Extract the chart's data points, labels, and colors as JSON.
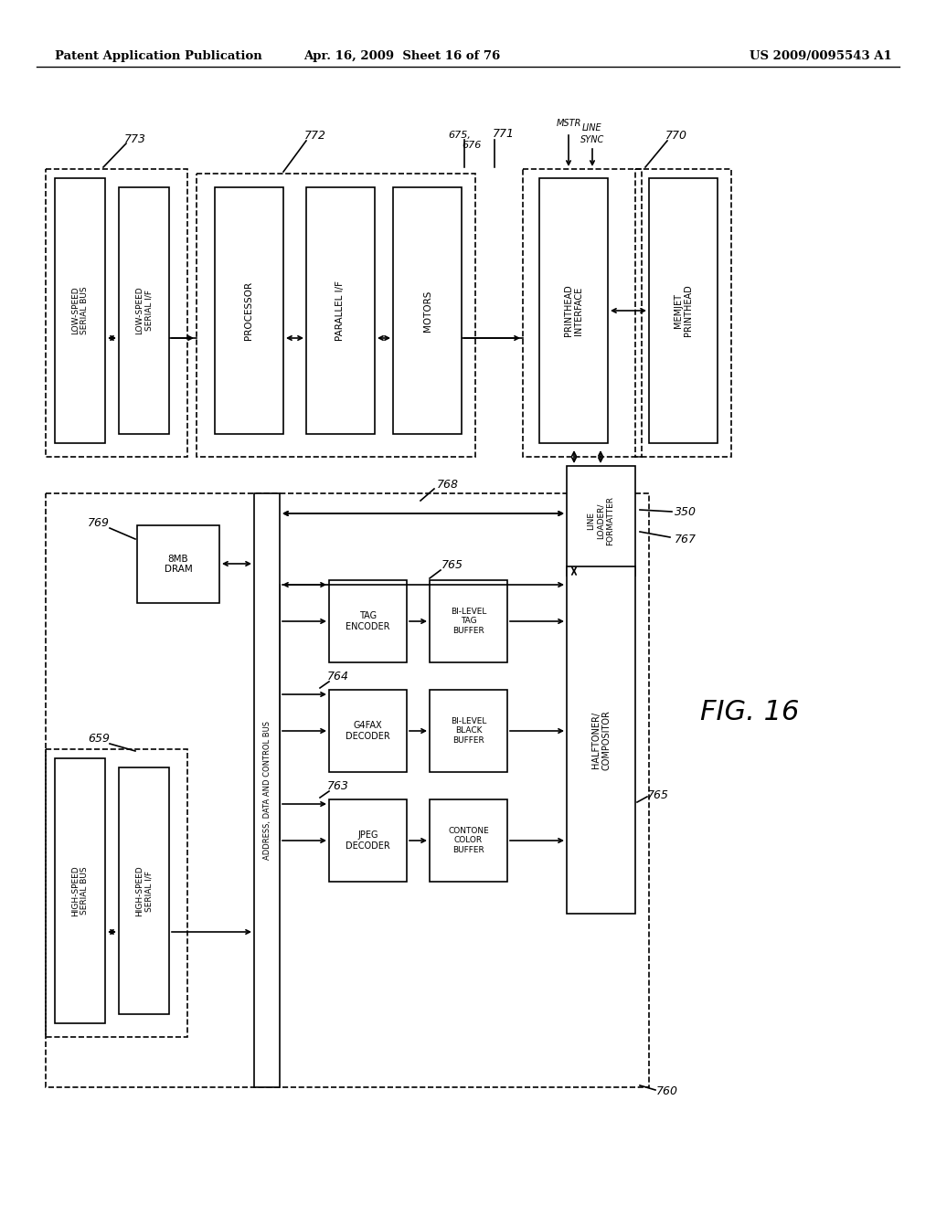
{
  "title_left": "Patent Application Publication",
  "title_mid": "Apr. 16, 2009  Sheet 16 of 76",
  "title_right": "US 2009/0095543 A1",
  "fig_label": "FIG. 16",
  "background": "#ffffff",
  "lc": "#000000",
  "tc": "#000000"
}
